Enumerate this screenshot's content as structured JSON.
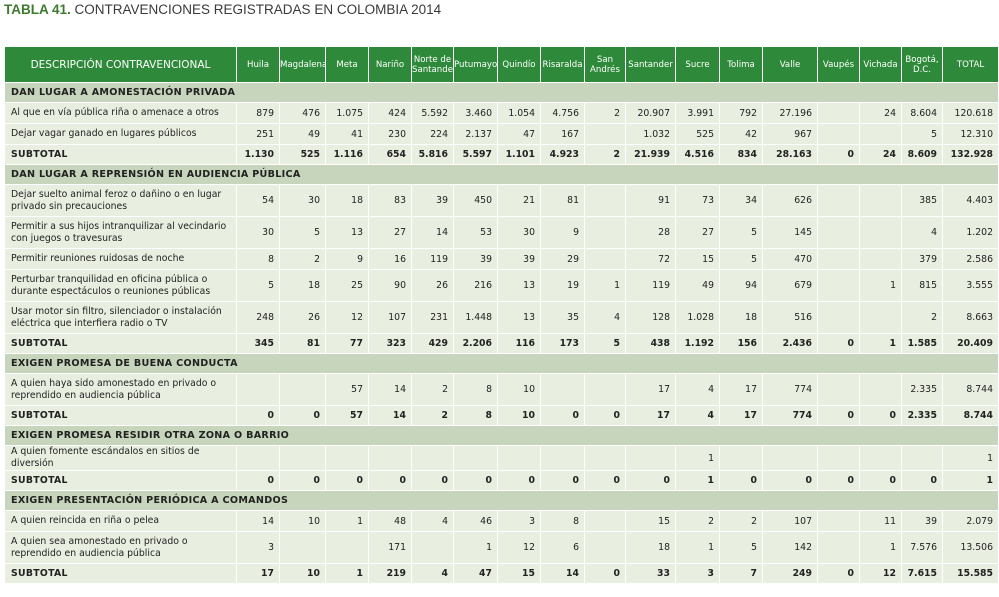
{
  "title": {
    "number": "TABLA 41.",
    "text": "CONTRAVENCIONES REGISTRADAS EN COLOMBIA 2014"
  },
  "columns": {
    "description": "DESCRIPCIÓN CONTRAVENCIONAL",
    "regions": [
      "Huila",
      "Magdalena",
      "Meta",
      "Nariño",
      "Norte de Santander",
      "Putumayo",
      "Quindío",
      "Risaralda",
      "San Andrés",
      "Santander",
      "Sucre",
      "Tolima",
      "Valle",
      "Vaupés",
      "Vichada",
      "Bogotá, D.C.",
      "TOTAL"
    ]
  },
  "sections": [
    {
      "title": "DAN LUGAR A AMONESTACIÓN PRIVADA",
      "rows": [
        {
          "label": "Al que en vía pública riña o amenace a otros",
          "values": [
            "879",
            "476",
            "1.075",
            "424",
            "5.592",
            "3.460",
            "1.054",
            "4.756",
            "2",
            "20.907",
            "3.991",
            "792",
            "27.196",
            "",
            "24",
            "8.604",
            "120.618"
          ]
        },
        {
          "label": "Dejar vagar ganado en lugares públicos",
          "values": [
            "251",
            "49",
            "41",
            "230",
            "224",
            "2.137",
            "47",
            "167",
            "",
            "1.032",
            "525",
            "42",
            "967",
            "",
            "",
            "5",
            "12.310"
          ]
        }
      ],
      "subtotal": {
        "label": "SUBTOTAL",
        "values": [
          "1.130",
          "525",
          "1.116",
          "654",
          "5.816",
          "5.597",
          "1.101",
          "4.923",
          "2",
          "21.939",
          "4.516",
          "834",
          "28.163",
          "0",
          "24",
          "8.609",
          "132.928"
        ]
      }
    },
    {
      "title": "DAN LUGAR A REPRENSIÓN EN AUDIENCIA PÚBLICA",
      "rows": [
        {
          "label": "Dejar suelto animal feroz o dañino o en lugar privado sin precauciones",
          "values": [
            "54",
            "30",
            "18",
            "83",
            "39",
            "450",
            "21",
            "81",
            "",
            "91",
            "73",
            "34",
            "626",
            "",
            "",
            "385",
            "4.403"
          ]
        },
        {
          "label": "Permitir a sus hijos intranquilizar al vecindario con juegos o travesuras",
          "values": [
            "30",
            "5",
            "13",
            "27",
            "14",
            "53",
            "30",
            "9",
            "",
            "28",
            "27",
            "5",
            "145",
            "",
            "",
            "4",
            "1.202"
          ]
        },
        {
          "label": "Permitir reuniones ruidosas de noche",
          "values": [
            "8",
            "2",
            "9",
            "16",
            "119",
            "39",
            "39",
            "29",
            "",
            "72",
            "15",
            "5",
            "470",
            "",
            "",
            "379",
            "2.586"
          ]
        },
        {
          "label": "Perturbar tranquilidad en oficina pública o durante espectáculos o reuniones públicas",
          "values": [
            "5",
            "18",
            "25",
            "90",
            "26",
            "216",
            "13",
            "19",
            "1",
            "119",
            "49",
            "94",
            "679",
            "",
            "1",
            "815",
            "3.555"
          ]
        },
        {
          "label": "Usar motor sin filtro, silenciador o instalación eléctrica que interfiera radio o TV",
          "values": [
            "248",
            "26",
            "12",
            "107",
            "231",
            "1.448",
            "13",
            "35",
            "4",
            "128",
            "1.028",
            "18",
            "516",
            "",
            "",
            "2",
            "8.663"
          ]
        }
      ],
      "subtotal": {
        "label": "SUBTOTAL",
        "values": [
          "345",
          "81",
          "77",
          "323",
          "429",
          "2.206",
          "116",
          "173",
          "5",
          "438",
          "1.192",
          "156",
          "2.436",
          "0",
          "1",
          "1.585",
          "20.409"
        ]
      }
    },
    {
      "title": "EXIGEN PROMESA DE BUENA CONDUCTA",
      "rows": [
        {
          "label": "A quien haya sido amonestado en privado o reprendido en audiencia pública",
          "values": [
            "",
            "",
            "57",
            "14",
            "2",
            "8",
            "10",
            "",
            "",
            "17",
            "4",
            "17",
            "774",
            "",
            "",
            "2.335",
            "8.744"
          ]
        }
      ],
      "subtotal": {
        "label": "SUBTOTAL",
        "values": [
          "0",
          "0",
          "57",
          "14",
          "2",
          "8",
          "10",
          "0",
          "0",
          "17",
          "4",
          "17",
          "774",
          "0",
          "0",
          "2.335",
          "8.744"
        ]
      }
    },
    {
      "title": "EXIGEN PROMESA RESIDIR OTRA ZONA O BARRIO",
      "rows": [
        {
          "label": "A quien fomente escándalos en sitios de diversión",
          "values": [
            "",
            "",
            "",
            "",
            "",
            "",
            "",
            "",
            "",
            "",
            "1",
            "",
            "",
            "",
            "",
            "",
            "1"
          ]
        }
      ],
      "subtotal": {
        "label": "SUBTOTAL",
        "values": [
          "0",
          "0",
          "0",
          "0",
          "0",
          "0",
          "0",
          "0",
          "0",
          "0",
          "1",
          "0",
          "0",
          "0",
          "0",
          "0",
          "1"
        ]
      }
    },
    {
      "title": "EXIGEN PRESENTACIÓN PERIÓDICA A COMANDOS",
      "rows": [
        {
          "label": "A quien reincida en riña o pelea",
          "values": [
            "14",
            "10",
            "1",
            "48",
            "4",
            "46",
            "3",
            "8",
            "",
            "15",
            "2",
            "2",
            "107",
            "",
            "11",
            "39",
            "2.079"
          ]
        },
        {
          "label": "A quien sea amonestado en privado o reprendido en audiencia pública",
          "values": [
            "3",
            "",
            "",
            "171",
            "",
            "1",
            "12",
            "6",
            "",
            "18",
            "1",
            "5",
            "142",
            "",
            "1",
            "7.576",
            "13.506"
          ]
        }
      ],
      "subtotal": {
        "label": "SUBTOTAL",
        "values": [
          "17",
          "10",
          "1",
          "219",
          "4",
          "47",
          "15",
          "14",
          "0",
          "33",
          "3",
          "7",
          "249",
          "0",
          "12",
          "7.615",
          "15.585"
        ]
      }
    }
  ]
}
